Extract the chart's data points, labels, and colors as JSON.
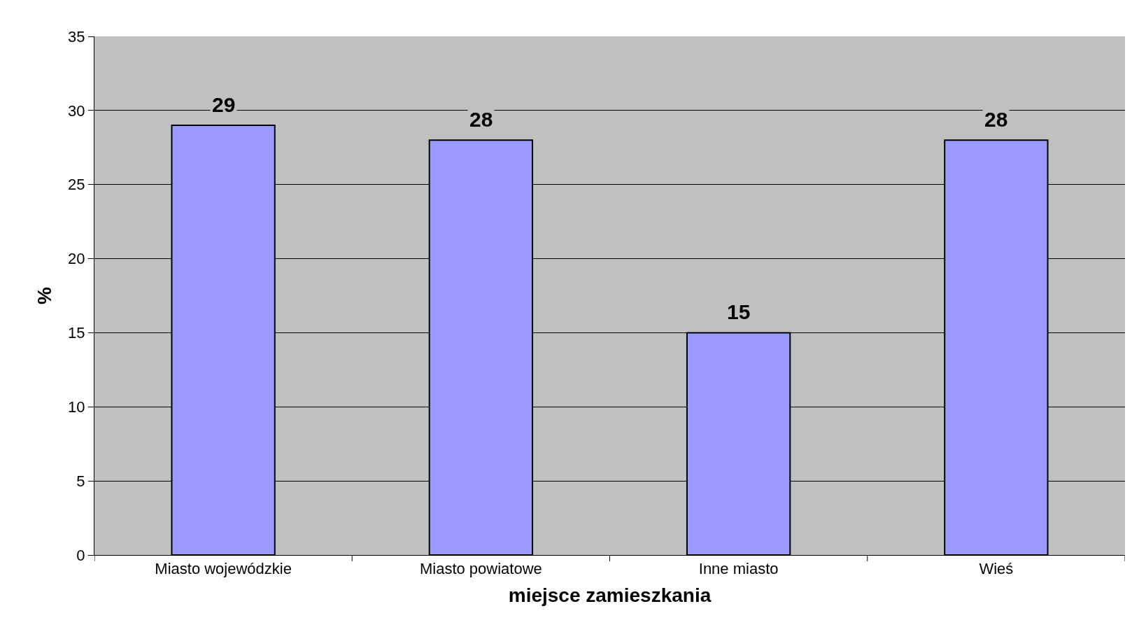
{
  "chart_data": {
    "type": "bar",
    "xlabel": "miejsce zamieszkania",
    "ylabel": "%",
    "categories": [
      "Miasto wojewódzkie",
      "Miasto powiatowe",
      "Inne miasto",
      "Wieś"
    ],
    "values": [
      29,
      28,
      15,
      28
    ],
    "color": "#9999ff",
    "data_labels": true,
    "ylim": [
      0,
      35
    ],
    "yticks": [
      0,
      5,
      10,
      15,
      20,
      25,
      30,
      35
    ],
    "grid": "y",
    "legend": false
  }
}
